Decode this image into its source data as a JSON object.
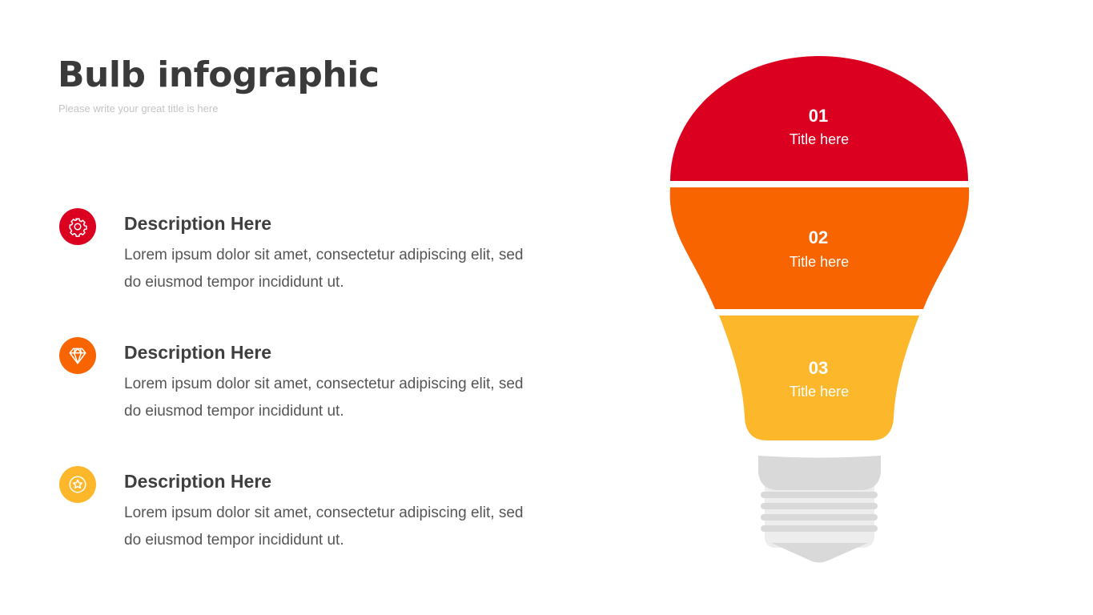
{
  "header": {
    "title": "Bulb infographic",
    "subtitle": "Please write your great title is here"
  },
  "items": [
    {
      "icon": "gear-icon",
      "color": "#DC0020",
      "title": "Description Here",
      "body": "Lorem ipsum dolor sit amet, consectetur adipiscing elit, sed do eiusmod tempor incididunt ut."
    },
    {
      "icon": "diamond-icon",
      "color": "#F86400",
      "title": "Description Here",
      "body": "Lorem ipsum dolor sit amet, consectetur adipiscing elit, sed do eiusmod tempor incididunt ut."
    },
    {
      "icon": "star-badge-icon",
      "color": "#FDB72B",
      "title": "Description Here",
      "body": "Lorem ipsum dolor sit amet, consectetur adipiscing elit, sed do eiusmod tempor incididunt ut."
    }
  ],
  "bulb": {
    "sections": [
      {
        "number": "01",
        "title": "Title here",
        "color": "#DC0020"
      },
      {
        "number": "02",
        "title": "Title here",
        "color": "#F86400"
      },
      {
        "number": "03",
        "title": "Title here",
        "color": "#FDB72B"
      }
    ],
    "base_color": "#D9D9D9",
    "base_light_color": "#EDEDED"
  }
}
